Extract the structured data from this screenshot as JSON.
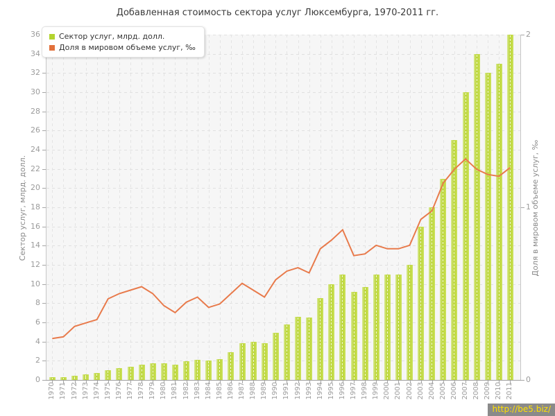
{
  "title": "Добавленная стоимость сектора услуг Люксембурга, 1970-2011 гг.",
  "legend": [
    {
      "label": "Сектор услуг, млрд. долл.",
      "color": "#b3d42f"
    },
    {
      "label": "Доля в мировом объеме услуг, ‰",
      "color": "#e2713c"
    }
  ],
  "watermark": {
    "text": "http://be5.biz/"
  },
  "colors": {
    "bar_main": "#b9d431",
    "bar_edge": "#d9e993",
    "line": "#e87a4b",
    "plot_bg": "#f6f6f6",
    "grid": "#e0e0e0",
    "axis_text": "#9b9b9b",
    "title_text": "#3a3a3a",
    "watermark_bg": "#8a8a8a",
    "watermark_text": "#ffe000"
  },
  "chart_data": {
    "type": "bar",
    "title": "Добавленная стоимость сектора услуг Люксембурга, 1970-2011 гг.",
    "categories": [
      1970,
      1971,
      1972,
      1973,
      1974,
      1975,
      1976,
      1977,
      1978,
      1979,
      1980,
      1981,
      1982,
      1983,
      1984,
      1985,
      1986,
      1987,
      1988,
      1989,
      1990,
      1991,
      1992,
      1993,
      1994,
      1995,
      1996,
      1997,
      1998,
      1999,
      2000,
      2001,
      2002,
      2003,
      2004,
      2005,
      2006,
      2007,
      2008,
      2009,
      2010,
      2011
    ],
    "series": [
      {
        "name": "Сектор услуг, млрд. долл.",
        "type": "bar",
        "axis": "left",
        "color": "#b9d431",
        "values": [
          0.3,
          0.32,
          0.45,
          0.55,
          0.7,
          1.0,
          1.2,
          1.35,
          1.6,
          1.75,
          1.75,
          1.6,
          1.95,
          2.1,
          2.0,
          2.2,
          2.9,
          3.8,
          4.0,
          3.85,
          4.9,
          5.8,
          6.6,
          6.5,
          8.5,
          10.0,
          11.0,
          9.2,
          9.7,
          11.0,
          11.0,
          11.0,
          12.0,
          16.0,
          18.0,
          21.0,
          25.0,
          30.0,
          34.0,
          32.0,
          33.0,
          36.0
        ]
      },
      {
        "name": "Доля в мировом объеме услуг, ‰",
        "type": "line",
        "axis": "right",
        "color": "#e87a4b",
        "values": [
          0.24,
          0.25,
          0.31,
          0.33,
          0.35,
          0.47,
          0.5,
          0.52,
          0.54,
          0.5,
          0.43,
          0.39,
          0.45,
          0.48,
          0.42,
          0.44,
          0.5,
          0.56,
          0.52,
          0.48,
          0.58,
          0.63,
          0.65,
          0.62,
          0.76,
          0.81,
          0.87,
          0.72,
          0.73,
          0.78,
          0.76,
          0.76,
          0.78,
          0.93,
          0.98,
          1.14,
          1.22,
          1.28,
          1.22,
          1.19,
          1.18,
          1.23
        ]
      }
    ],
    "left_axis": {
      "title": "Сектор услуг, млрд. долл.",
      "min": 0,
      "max": 36,
      "step": 2
    },
    "right_axis": {
      "title": "Доля в мировом объеме услуг, ‰",
      "min": 0,
      "max": 2,
      "labels": [
        0,
        1,
        2
      ]
    },
    "x_axis": {
      "labels": [
        1970,
        1971,
        1972,
        1973,
        1974,
        1975,
        1976,
        1977,
        1978,
        1979,
        1980,
        1981,
        1982,
        1983,
        1984,
        1985,
        1986,
        1987,
        1988,
        1989,
        1990,
        1991,
        1992,
        1993,
        1994,
        1995,
        1996,
        1997,
        1998,
        1999,
        2000,
        2001,
        2002,
        2003,
        2004,
        2005,
        2006,
        2007,
        2008,
        2009,
        2010,
        2011
      ]
    },
    "grid": true,
    "legend_position": "top-left"
  }
}
